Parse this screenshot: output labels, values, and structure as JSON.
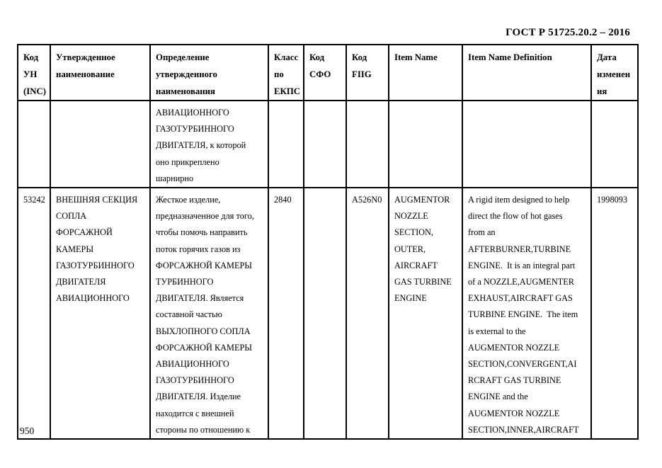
{
  "page": {
    "doc_title": "ГОСТ Р 51725.20.2 – 2016",
    "page_number": "950"
  },
  "table": {
    "headers": [
      {
        "name": "kod-un-inc",
        "lines": [
          "Код",
          "УН",
          "(INC)"
        ]
      },
      {
        "name": "utverzhdennoe-naimenovanie",
        "lines": [
          "Утвержденное",
          "наименование"
        ]
      },
      {
        "name": "opredelenie",
        "lines": [
          "Определение",
          "утвержденного",
          "наименования"
        ]
      },
      {
        "name": "klass-po-ekps",
        "lines": [
          "Класс",
          "по",
          "ЕКПС"
        ]
      },
      {
        "name": "kod-sfo",
        "lines": [
          "Код",
          "СФО"
        ]
      },
      {
        "name": "kod-fiig",
        "lines": [
          "Код",
          "FIIG"
        ]
      },
      {
        "name": "item-name",
        "lines": [
          "Item Name"
        ]
      },
      {
        "name": "item-name-definition",
        "lines": [
          "Item Name Definition"
        ]
      },
      {
        "name": "data-izmeneniya",
        "lines": [
          "Дата",
          "изменен",
          "ия"
        ]
      }
    ],
    "rows": [
      {
        "cells": [
          [],
          [],
          [
            "АВИАЦИОННОГО",
            "ГАЗОТУРБИННОГО",
            "ДВИГАТЕЛЯ, к которой",
            "оно прикреплено",
            "шарнирно"
          ],
          [],
          [],
          [],
          [],
          [],
          []
        ]
      },
      {
        "cells": [
          [
            "53242"
          ],
          [
            "ВНЕШНЯЯ СЕКЦИЯ",
            "СОПЛА",
            "ФОРСАЖНОЙ",
            "КАМЕРЫ",
            "ГАЗОТУРБИННОГО",
            "ДВИГАТЕЛЯ",
            "АВИАЦИОННОГО"
          ],
          [
            "Жесткое изделие,",
            "предназначенное для того,",
            "чтобы помочь направить",
            "поток горячих газов из",
            "ФОРСАЖНОЙ КАМЕРЫ",
            "ТУРБИННОГО",
            "ДВИГАТЕЛЯ. Является",
            "составной частью",
            "ВЫХЛОПНОГО СОПЛА",
            "ФОРСАЖНОЙ КАМЕРЫ",
            "АВИАЦИОННОГО",
            "ГАЗОТУРБИННОГО",
            "ДВИГАТЕЛЯ. Изделие",
            "находится с внешней",
            "стороны по отношению к"
          ],
          [
            "2840"
          ],
          [],
          [
            "A526N0"
          ],
          [
            "AUGMENTOR",
            "NOZZLE",
            "SECTION,",
            "OUTER,",
            "AIRCRAFT",
            "GAS TURBINE",
            "ENGINE"
          ],
          [
            "A rigid item designed to help",
            "direct the flow of hot gases",
            "from an",
            "AFTERBURNER,TURBINE",
            "ENGINE.  It is an integral part",
            "of a NOZZLE,AUGMENTER",
            "EXHAUST,AIRCRAFT GAS",
            "TURBINE ENGINE.  The item",
            "is external to the",
            "AUGMENTOR NOZZLE",
            "SECTION,CONVERGENT,AI",
            "RCRAFT GAS TURBINE",
            "ENGINE and the",
            "AUGMENTOR NOZZLE",
            "SECTION,INNER,AIRCRAFT"
          ],
          [
            "1998093"
          ]
        ]
      }
    ]
  }
}
